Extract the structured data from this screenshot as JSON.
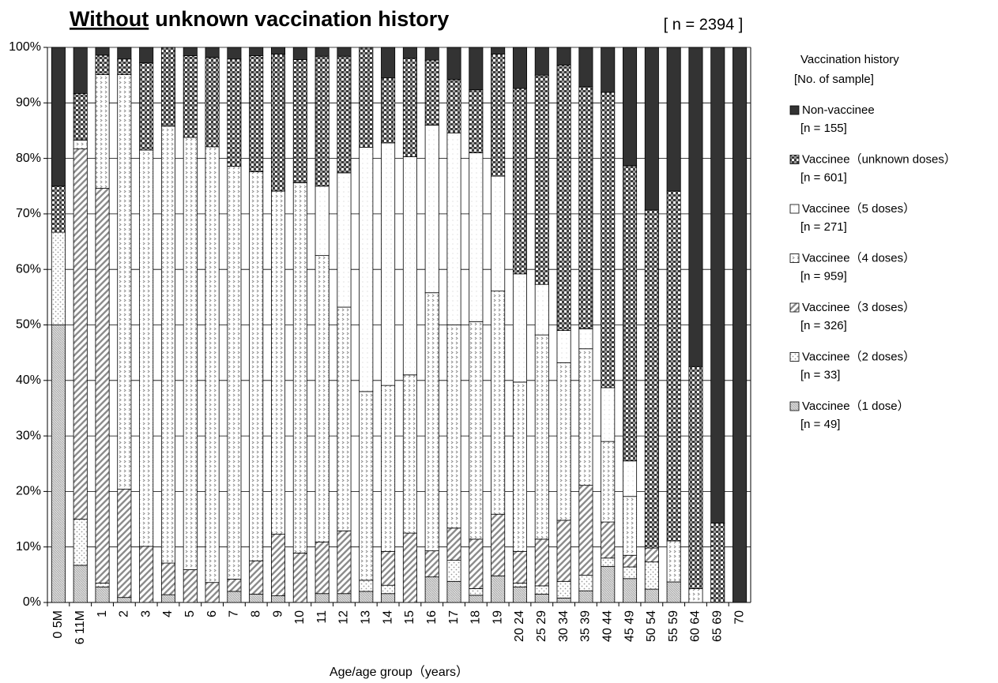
{
  "chart_data": {
    "type": "stacked_bar",
    "title_parts": [
      "Without",
      "unknown vaccination history"
    ],
    "annotation": "[ n = 2394 ]",
    "x_label": "Age/age group（years）",
    "legend_title": "Vaccination history",
    "legend_subtitle": "[No. of sample]",
    "categories": [
      "0 5M",
      "6 11M",
      "1",
      "2",
      "3",
      "4",
      "5",
      "6",
      "7",
      "8",
      "9",
      "10",
      "11",
      "12",
      "13",
      "14",
      "15",
      "16",
      "17",
      "18",
      "19",
      "20 24",
      "25 29",
      "30 34",
      "35 39",
      "40 44",
      "45 49",
      "50 54",
      "55 59",
      "60 64",
      "65 69",
      "70"
    ],
    "ylim": [
      0,
      100
    ],
    "yticks": [
      {
        "value": 0,
        "label": "0%"
      },
      {
        "value": 10,
        "label": "10%"
      },
      {
        "value": 20,
        "label": "20%"
      },
      {
        "value": 30,
        "label": "30%"
      },
      {
        "value": 40,
        "label": "40%"
      },
      {
        "value": 50,
        "label": "50%"
      },
      {
        "value": 60,
        "label": "60%"
      },
      {
        "value": 70,
        "label": "70%"
      },
      {
        "value": 80,
        "label": "80%"
      },
      {
        "value": 90,
        "label": "90%"
      },
      {
        "value": 100,
        "label": "100%"
      }
    ],
    "grid": true,
    "series": [
      {
        "name": "Vaccinee（1 dose）",
        "n_label": "[n = 49]",
        "color": "#bdbdbd",
        "pattern": "fine",
        "values": [
          50,
          6.7,
          2.8,
          0.9,
          0,
          1.4,
          0,
          0,
          2.0,
          1.5,
          1.2,
          0,
          1.6,
          1.6,
          2.0,
          1.6,
          0,
          4.6,
          3.8,
          1.3,
          4.8,
          2.8,
          1.5,
          0.8,
          2.1,
          6.5,
          4.3,
          2.4,
          3.7,
          0,
          0,
          0
        ]
      },
      {
        "name": "Vaccinee（2 doses）",
        "n_label": "[n = 33]",
        "color": "#9a9a9a",
        "pattern": "dots",
        "values": [
          16.7,
          8.3,
          0.7,
          0,
          0,
          0,
          0,
          0,
          0,
          0,
          0,
          0,
          0,
          0,
          2.0,
          1.5,
          0,
          0,
          3.8,
          1.2,
          0,
          0.7,
          1.5,
          3.0,
          2.8,
          1.5,
          2.1,
          4.9,
          0,
          0,
          0,
          0
        ]
      },
      {
        "name": "Vaccinee（3 doses）",
        "n_label": "[n = 326]",
        "color": "#8c8c8c",
        "pattern": "diag",
        "values": [
          0,
          66.7,
          71.1,
          19.5,
          10.1,
          5.7,
          5.9,
          3.6,
          2.2,
          6.0,
          11.1,
          8.9,
          9.3,
          11.3,
          0,
          6.1,
          12.5,
          4.7,
          5.8,
          8.9,
          11.1,
          5.7,
          8.4,
          11.0,
          16.2,
          6.5,
          2.1,
          2.5,
          0,
          0,
          0,
          0
        ]
      },
      {
        "name": "Vaccinee（4 doses）",
        "n_label": "[n = 959]",
        "color": "#8a8a8a",
        "pattern": "chevron",
        "values": [
          0,
          1.6,
          20.5,
          74.7,
          71.4,
          78.7,
          77.9,
          78.5,
          74.4,
          70.1,
          61.8,
          66.7,
          51.6,
          40.3,
          34.0,
          29.9,
          28.5,
          46.5,
          36.6,
          39.2,
          40.2,
          30.5,
          36.8,
          28.4,
          24.6,
          14.5,
          10.6,
          0,
          7.4,
          2.5,
          0,
          0
        ]
      },
      {
        "name": "Vaccinee（5 doses）",
        "n_label": "[n = 271]",
        "color": "#b5b5b5",
        "pattern": "sparse",
        "values": [
          0,
          0,
          0,
          0,
          0,
          0,
          0,
          0,
          0,
          0,
          0,
          0,
          12.5,
          24.2,
          44.0,
          43.7,
          39.3,
          30.2,
          34.6,
          30.4,
          20.7,
          19.5,
          9.1,
          5.8,
          3.6,
          9.7,
          6.4,
          0,
          0,
          0,
          0,
          0
        ]
      },
      {
        "name": "Vaccinee（unknown doses）",
        "n_label": "[n = 601]",
        "color": "#3a3a3a",
        "pattern": "check",
        "values": [
          8.3,
          8.4,
          3.5,
          2.8,
          15.7,
          14.2,
          14.7,
          16.1,
          19.3,
          20.9,
          24.7,
          22.2,
          23.4,
          21.0,
          18.0,
          11.7,
          17.7,
          11.7,
          9.6,
          11.4,
          22.0,
          33.4,
          37.7,
          47.8,
          43.6,
          53.2,
          53.2,
          60.9,
          63.0,
          40.0,
          14.3,
          0
        ]
      },
      {
        "name": "Non-vaccinee",
        "n_label": "[n = 155]",
        "color": "#333333",
        "pattern": "solid",
        "values": [
          25,
          8.3,
          1.4,
          2.1,
          2.8,
          0,
          1.5,
          1.8,
          2.1,
          1.5,
          1.2,
          2.2,
          1.6,
          1.6,
          0,
          5.5,
          2.0,
          2.3,
          5.8,
          7.6,
          1.2,
          7.4,
          5.0,
          3.2,
          7.1,
          8.1,
          21.3,
          29.3,
          25.9,
          57.5,
          85.7,
          100
        ]
      }
    ]
  }
}
